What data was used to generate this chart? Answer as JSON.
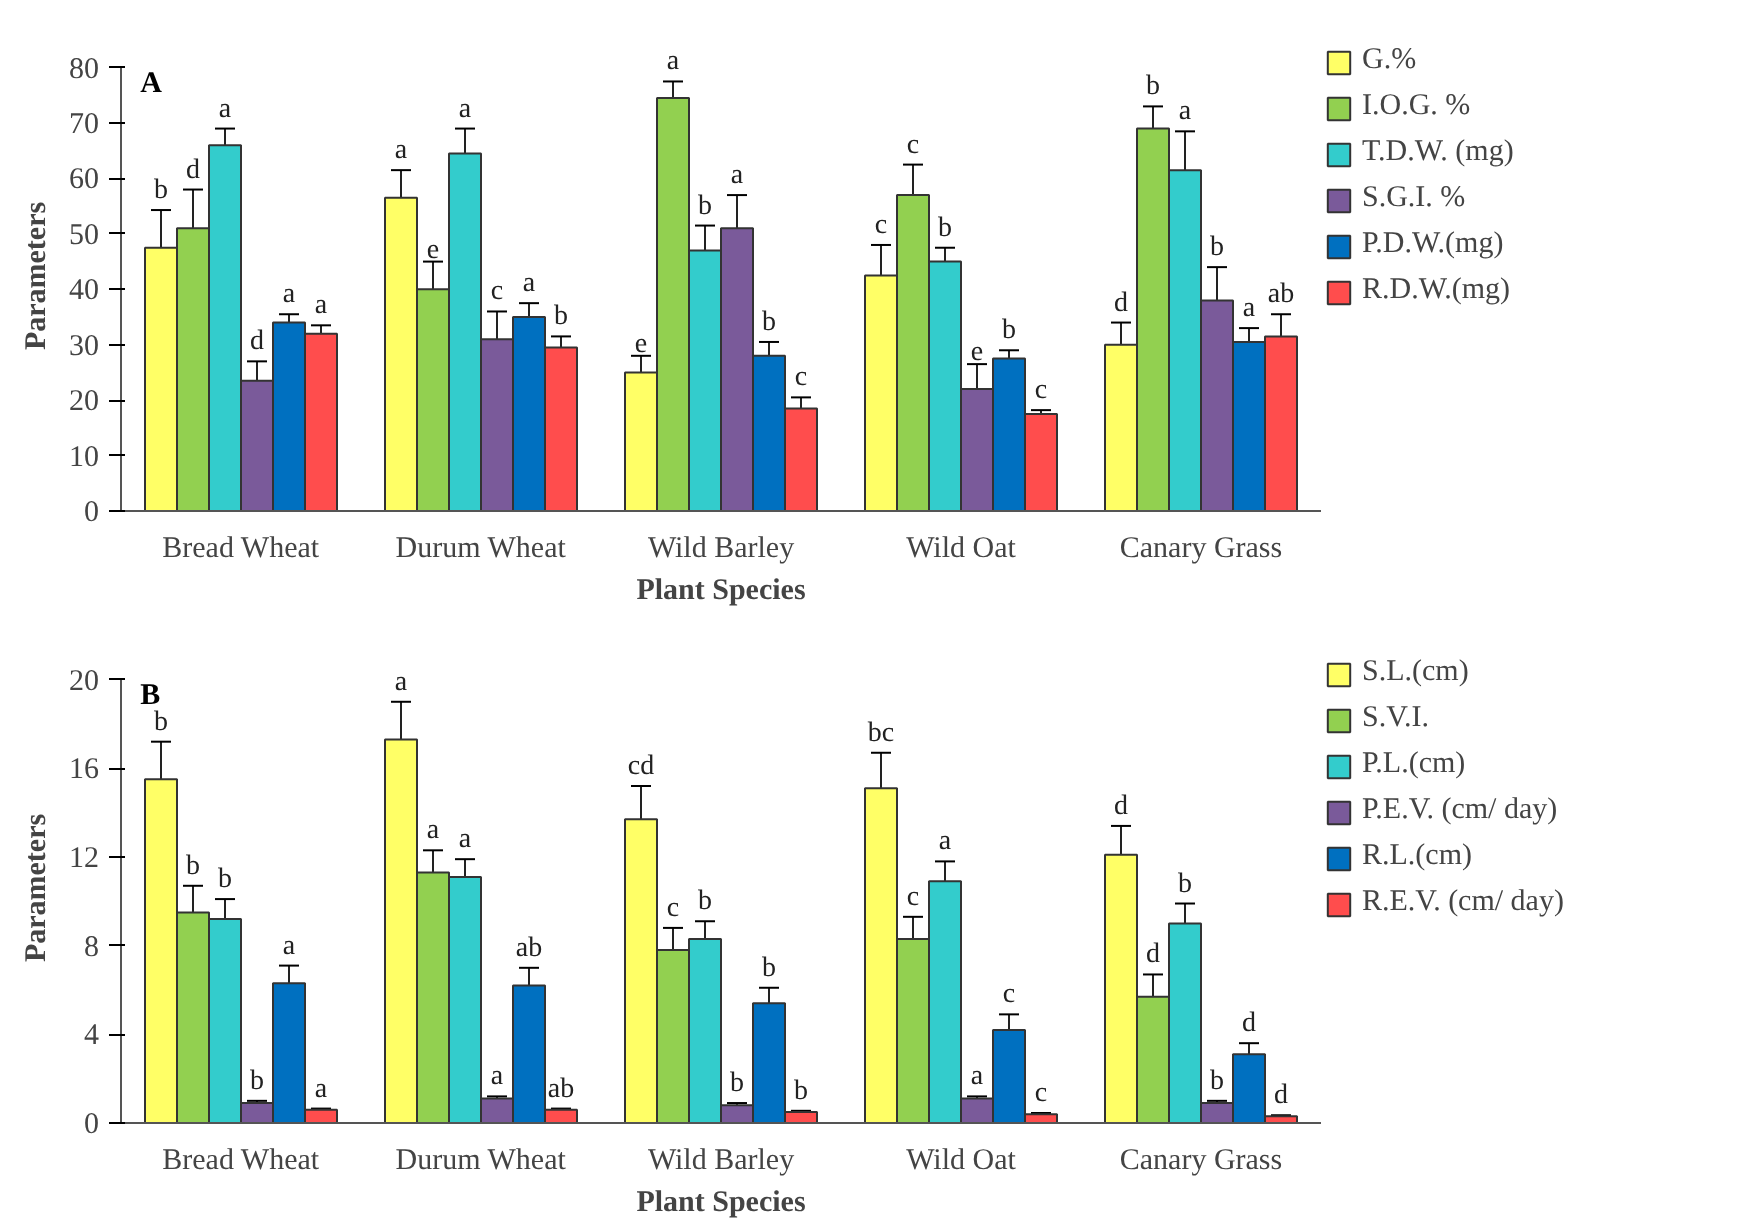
{
  "chart_data": [
    {
      "type": "bar",
      "title": "A",
      "xlabel": "Plant Species",
      "ylabel": "Parameters",
      "categories": [
        "Bread Wheat",
        "Durum Wheat",
        "Wild Barley",
        "Wild Oat",
        "Canary Grass"
      ],
      "ylim": [
        0,
        80
      ],
      "yticks": [
        0,
        10,
        20,
        30,
        40,
        50,
        60,
        70,
        80
      ],
      "grid": false,
      "legend": "right",
      "series": [
        {
          "name": "G.%",
          "color": "#ffff66",
          "values": [
            47.5,
            56.5,
            25,
            42.5,
            30
          ],
          "errors": [
            6.8,
            5,
            3,
            5.5,
            4
          ],
          "value_labels": [
            "b",
            "a",
            "e",
            "c",
            "d"
          ]
        },
        {
          "name": "I.O.G. %",
          "color": "#92d050",
          "values": [
            51,
            40,
            74.5,
            57,
            69
          ],
          "errors": [
            7,
            5,
            3,
            5.5,
            4
          ],
          "value_labels": [
            "d",
            "e",
            "a",
            "c",
            "b"
          ]
        },
        {
          "name": "T.D.W. (mg)",
          "color": "#33cccc",
          "values": [
            66,
            64.5,
            47,
            45,
            61.5
          ],
          "errors": [
            3,
            4.5,
            4.5,
            2.5,
            7
          ],
          "value_labels": [
            "a",
            "a",
            "b",
            "b",
            "a"
          ]
        },
        {
          "name": "S.G.I. %",
          "color": "#7a5a9a",
          "values": [
            23.5,
            31,
            51,
            22,
            38
          ],
          "errors": [
            3.5,
            5,
            6,
            4.5,
            6
          ],
          "value_labels": [
            "d",
            "c",
            "a",
            "e",
            "b"
          ]
        },
        {
          "name": "P.D.W.(mg)",
          "color": "#0070c0",
          "values": [
            34,
            35,
            28,
            27.5,
            30.5
          ],
          "errors": [
            1.5,
            2.5,
            2.5,
            1.5,
            2.5
          ],
          "value_labels": [
            "a",
            "a",
            "b",
            "b",
            "a"
          ]
        },
        {
          "name": "R.D.W.(mg)",
          "color": "#ff4d4d",
          "values": [
            32,
            29.5,
            18.5,
            17.5,
            31.5
          ],
          "errors": [
            1.5,
            2,
            2,
            0.7,
            4
          ],
          "value_labels": [
            "a",
            "b",
            "c",
            "c",
            "ab"
          ]
        }
      ]
    },
    {
      "type": "bar",
      "title": "B",
      "xlabel": "Plant Species",
      "ylabel": "Parameters",
      "categories": [
        "Bread Wheat",
        "Durum Wheat",
        "Wild Barley",
        "Wild Oat",
        "Canary Grass"
      ],
      "ylim": [
        0,
        20
      ],
      "yticks": [
        0,
        4,
        8,
        12,
        16,
        20
      ],
      "grid": false,
      "legend": "right",
      "series": [
        {
          "name": "S.L.(cm)",
          "color": "#ffff66",
          "values": [
            15.5,
            17.3,
            13.7,
            15.1,
            12.1
          ],
          "errors": [
            1.7,
            1.7,
            1.5,
            1.6,
            1.3
          ],
          "value_labels": [
            "b",
            "a",
            "cd",
            "bc",
            "d"
          ]
        },
        {
          "name": "S.V.I.",
          "color": "#92d050",
          "values": [
            9.5,
            11.3,
            7.8,
            8.3,
            5.7
          ],
          "errors": [
            1.2,
            1.0,
            1.0,
            1.0,
            1.0
          ],
          "value_labels": [
            "b",
            "a",
            "c",
            "c",
            "d"
          ]
        },
        {
          "name": "P.L.(cm)",
          "color": "#33cccc",
          "values": [
            9.2,
            11.1,
            8.3,
            10.9,
            9.0
          ],
          "errors": [
            0.9,
            0.8,
            0.8,
            0.9,
            0.9
          ],
          "value_labels": [
            "b",
            "a",
            "b",
            "a",
            "b"
          ]
        },
        {
          "name": "P.E.V. (cm/ day)",
          "color": "#7a5a9a",
          "values": [
            0.9,
            1.1,
            0.8,
            1.1,
            0.9
          ],
          "errors": [
            0.1,
            0.1,
            0.1,
            0.1,
            0.1
          ],
          "value_labels": [
            "b",
            "a",
            "b",
            "a",
            "b"
          ]
        },
        {
          "name": "R.L.(cm)",
          "color": "#0070c0",
          "values": [
            6.3,
            6.2,
            5.4,
            4.2,
            3.1
          ],
          "errors": [
            0.8,
            0.8,
            0.7,
            0.7,
            0.5
          ],
          "value_labels": [
            "a",
            "ab",
            "b",
            "c",
            "d"
          ]
        },
        {
          "name": "R.E.V. (cm/ day)",
          "color": "#ff4d4d",
          "values": [
            0.6,
            0.6,
            0.5,
            0.4,
            0.3
          ],
          "errors": [
            0.05,
            0.05,
            0.05,
            0.05,
            0.05
          ],
          "value_labels": [
            "a",
            "ab",
            "b",
            "c",
            "d"
          ]
        }
      ]
    }
  ]
}
